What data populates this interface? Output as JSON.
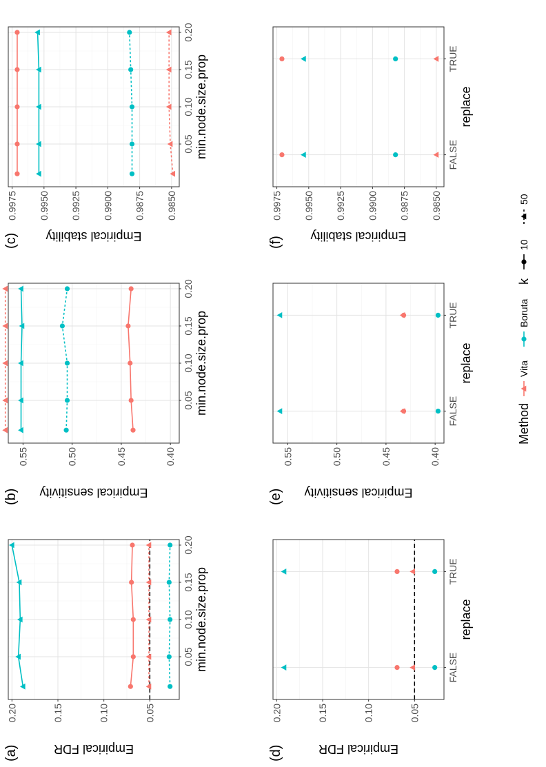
{
  "figure": {
    "legend": {
      "method_title": "Method",
      "k_title": "k",
      "method_entries": [
        {
          "label": "Vita",
          "color": "#F8766D"
        },
        {
          "label": "Boruta",
          "color": "#00BFC4"
        }
      ],
      "k_entries": [
        {
          "label": "10",
          "linestyle": "solid"
        },
        {
          "label": "50",
          "linestyle": "dashed"
        }
      ]
    },
    "colors": {
      "Vita": "#F8766D",
      "Boruta": "#00BFC4"
    }
  },
  "chart_data": [
    {
      "panel": "(a)",
      "type": "line",
      "xlabel": "min.node.size.prop",
      "ylabel": "Empirical FDR",
      "x": [
        0.01,
        0.05,
        0.1,
        0.15,
        0.2
      ],
      "xticks": [
        "0.05",
        "0.10",
        "0.15",
        "0.20"
      ],
      "xtick_values": [
        0.05,
        0.1,
        0.15,
        0.2
      ],
      "xlim": [
        0.0,
        0.2
      ],
      "yticks": [
        "0.05",
        "0.10",
        "0.15",
        "0.20"
      ],
      "ytick_values": [
        0.05,
        0.1,
        0.15,
        0.2
      ],
      "ylim": [
        0.018,
        0.204
      ],
      "hline": 0.05,
      "series": [
        {
          "method": "Boruta",
          "k": "10",
          "values": [
            0.188,
            0.193,
            0.191,
            0.192,
            0.2
          ]
        },
        {
          "method": "Vita",
          "k": "10",
          "values": [
            0.071,
            0.068,
            0.068,
            0.07,
            0.069
          ]
        },
        {
          "method": "Vita",
          "k": "50",
          "values": [
            0.051,
            0.051,
            0.051,
            0.051,
            0.051
          ]
        },
        {
          "method": "Boruta",
          "k": "50",
          "values": [
            0.028,
            0.029,
            0.028,
            0.029,
            0.028
          ]
        }
      ]
    },
    {
      "panel": "(b)",
      "type": "line",
      "xlabel": "min.node.size.prop",
      "ylabel": "Empirical sensitivity",
      "x": [
        0.01,
        0.05,
        0.1,
        0.15,
        0.2
      ],
      "xticks": [
        "0.05",
        "0.10",
        "0.15",
        "0.20"
      ],
      "xtick_values": [
        0.05,
        0.1,
        0.15,
        0.2
      ],
      "xlim": [
        0.0,
        0.2
      ],
      "yticks": [
        "0.40",
        "0.45",
        "0.50",
        "0.55"
      ],
      "ytick_values": [
        0.4,
        0.45,
        0.5,
        0.55
      ],
      "ylim": [
        0.391,
        0.565
      ],
      "series": [
        {
          "method": "Boruta",
          "k": "10",
          "values": [
            0.552,
            0.552,
            0.552,
            0.551,
            0.552
          ]
        },
        {
          "method": "Vita",
          "k": "50",
          "values": [
            0.568,
            0.568,
            0.568,
            0.568,
            0.568
          ]
        },
        {
          "method": "Boruta",
          "k": "50",
          "values": [
            0.506,
            0.505,
            0.505,
            0.51,
            0.505
          ]
        },
        {
          "method": "Vita",
          "k": "10",
          "values": [
            0.438,
            0.44,
            0.441,
            0.443,
            0.44
          ]
        }
      ]
    },
    {
      "panel": "(c)",
      "type": "line",
      "xlabel": "min.node.size.prop",
      "ylabel": "Empirical stability",
      "x": [
        0.01,
        0.05,
        0.1,
        0.15,
        0.2
      ],
      "xticks": [
        "0.05",
        "0.10",
        "0.15",
        "0.20"
      ],
      "xtick_values": [
        0.05,
        0.1,
        0.15,
        0.2
      ],
      "xlim": [
        0.0,
        0.2
      ],
      "yticks": [
        "0.9850",
        "0.9875",
        "0.9900",
        "0.9925",
        "0.9950",
        "0.9975"
      ],
      "ytick_values": [
        0.985,
        0.9875,
        0.99,
        0.9925,
        0.995,
        0.9975
      ],
      "ylim": [
        0.9844,
        0.9978
      ],
      "series": [
        {
          "method": "Vita",
          "k": "10",
          "values": [
            0.9971,
            0.9971,
            0.9971,
            0.9971,
            0.9971
          ]
        },
        {
          "method": "Boruta",
          "k": "10",
          "values": [
            0.9954,
            0.9954,
            0.9954,
            0.9954,
            0.9955
          ]
        },
        {
          "method": "Boruta",
          "k": "50",
          "values": [
            0.9881,
            0.9881,
            0.9881,
            0.9882,
            0.9883
          ]
        },
        {
          "method": "Vita",
          "k": "50",
          "values": [
            0.9849,
            0.9851,
            0.9852,
            0.9852,
            0.9852
          ]
        }
      ]
    },
    {
      "panel": "(d)",
      "type": "scatter",
      "xlabel": "replace",
      "ylabel": "Empirical FDR",
      "categories": [
        "FALSE",
        "TRUE"
      ],
      "yticks": [
        "0.05",
        "0.10",
        "0.15",
        "0.20"
      ],
      "ytick_values": [
        0.05,
        0.1,
        0.15,
        0.2
      ],
      "ylim": [
        0.018,
        0.204
      ],
      "hline": 0.05,
      "series": [
        {
          "method": "Boruta",
          "k": "10",
          "values": [
            0.192,
            0.192
          ]
        },
        {
          "method": "Vita",
          "k": "10",
          "values": [
            0.069,
            0.069
          ]
        },
        {
          "method": "Vita",
          "k": "50",
          "values": [
            0.052,
            0.052
          ]
        },
        {
          "method": "Boruta",
          "k": "50",
          "values": [
            0.028,
            0.028
          ]
        }
      ]
    },
    {
      "panel": "(e)",
      "type": "scatter",
      "xlabel": "replace",
      "ylabel": "Empirical sensitivity",
      "categories": [
        "FALSE",
        "TRUE"
      ],
      "yticks": [
        "0.40",
        "0.45",
        "0.50",
        "0.55"
      ],
      "ytick_values": [
        0.4,
        0.45,
        0.5,
        0.55
      ],
      "ylim": [
        0.391,
        0.565
      ],
      "series": [
        {
          "method": "Boruta",
          "k": "10",
          "values": [
            0.558,
            0.558
          ]
        },
        {
          "method": "Vita",
          "k": "10",
          "values": [
            0.432,
            0.432
          ]
        },
        {
          "method": "Vita",
          "k": "50",
          "values": [
            0.433,
            0.433
          ]
        },
        {
          "method": "Boruta",
          "k": "50",
          "values": [
            0.397,
            0.397
          ]
        }
      ]
    },
    {
      "panel": "(f)",
      "type": "scatter",
      "xlabel": "replace",
      "ylabel": "Empirical stability",
      "categories": [
        "FALSE",
        "TRUE"
      ],
      "yticks": [
        "0.9850",
        "0.9875",
        "0.9900",
        "0.9925",
        "0.9950",
        "0.9975"
      ],
      "ytick_values": [
        0.985,
        0.9875,
        0.99,
        0.9925,
        0.995,
        0.9975
      ],
      "ylim": [
        0.9844,
        0.9978
      ],
      "series": [
        {
          "method": "Vita",
          "k": "10",
          "values": [
            0.9971,
            0.9971
          ]
        },
        {
          "method": "Boruta",
          "k": "10",
          "values": [
            0.9954,
            0.9954
          ]
        },
        {
          "method": "Boruta",
          "k": "50",
          "values": [
            0.9882,
            0.9882
          ]
        },
        {
          "method": "Vita",
          "k": "50",
          "values": [
            0.985,
            0.985
          ]
        }
      ]
    }
  ]
}
